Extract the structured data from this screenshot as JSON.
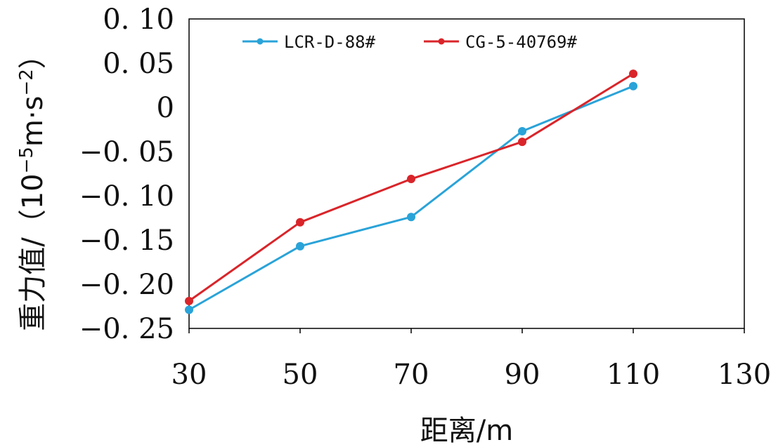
{
  "chart_data": {
    "type": "line",
    "x": [
      30,
      50,
      70,
      90,
      110
    ],
    "xlim": [
      30,
      130
    ],
    "xticks": [
      30,
      50,
      70,
      90,
      110,
      130
    ],
    "xtick_labels": [
      "30",
      "50",
      "70",
      "90",
      "110",
      "130"
    ],
    "ylim": [
      -0.25,
      0.1
    ],
    "yticks": [
      0.1,
      0.05,
      0,
      -0.05,
      -0.1,
      -0.15,
      -0.2,
      -0.25
    ],
    "ytick_labels": [
      "0. 10",
      "0. 05",
      "0",
      "−0. 05",
      "−0. 10",
      "−0. 15",
      "−0. 20",
      "−0. 25"
    ],
    "xlabel": "距离/m",
    "ylabel": {
      "prefix": "重力值/（10",
      "sup1": "−5",
      "mid": "m·s",
      "sup2": "−2",
      "suffix": "）"
    },
    "legend_position": "top",
    "grid": false,
    "series": [
      {
        "name": "LCR-D-88#",
        "color": "#2aa3d8",
        "values": [
          -0.229,
          -0.157,
          -0.124,
          -0.027,
          0.024
        ]
      },
      {
        "name": "CG-5-40769#",
        "color": "#d9252a",
        "values": [
          -0.219,
          -0.13,
          -0.081,
          -0.039,
          0.038
        ]
      }
    ]
  }
}
